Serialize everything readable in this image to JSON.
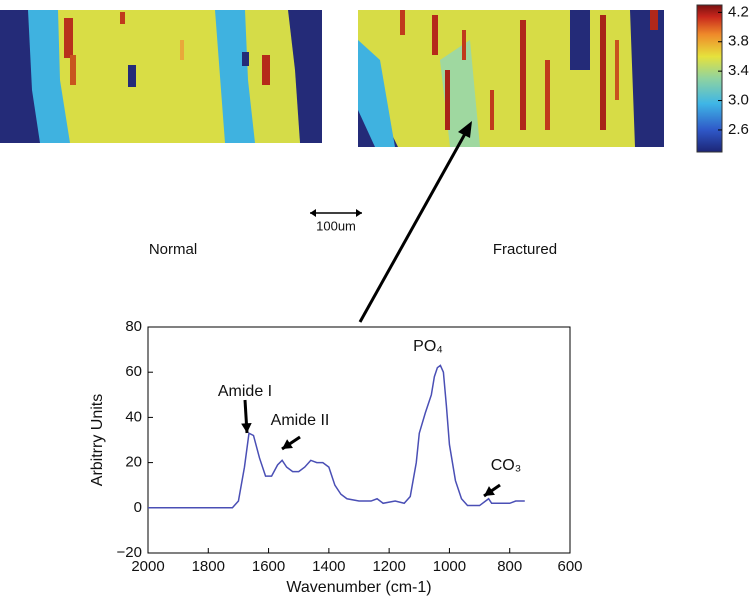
{
  "figure": {
    "panels": [
      "Normal",
      "Fractured"
    ],
    "scale_bar": "100um",
    "colorbar": {
      "lim": [
        2.3,
        4.3
      ],
      "ticks": [
        2.6,
        {
          "value": 3,
          "label": "3.0"
        },
        3.4,
        3.8,
        4.2
      ]
    }
  },
  "chart_data": {
    "type": "line",
    "xlabel": "Wavenumber (cm-1)",
    "ylabel": "Arbitrry Units",
    "x": [
      2000,
      1900,
      1720,
      1700,
      1680,
      1665,
      1650,
      1630,
      1610,
      1590,
      1570,
      1555,
      1540,
      1520,
      1500,
      1480,
      1460,
      1440,
      1420,
      1400,
      1380,
      1360,
      1340,
      1300,
      1260,
      1240,
      1220,
      1180,
      1150,
      1130,
      1110,
      1100,
      1080,
      1060,
      1050,
      1040,
      1030,
      1020,
      1010,
      1000,
      980,
      960,
      940,
      920,
      900,
      880,
      870,
      860,
      840,
      820,
      800,
      780,
      760,
      750
    ],
    "series": [
      {
        "color": "#4a4fb5",
        "values": [
          0,
          0,
          0,
          3,
          18,
          33,
          32,
          22,
          14,
          14,
          19,
          21,
          18,
          16,
          16,
          18,
          21,
          20,
          20,
          18,
          10,
          6,
          4,
          3,
          3,
          4,
          2,
          3,
          2,
          5,
          20,
          33,
          42,
          50,
          58,
          62,
          63,
          60,
          45,
          28,
          12,
          4,
          1,
          1,
          1,
          3,
          4,
          2,
          2,
          2,
          2,
          3,
          3,
          3
        ]
      }
    ],
    "xlim": [
      2000,
      600
    ],
    "ylim": [
      -20,
      80
    ],
    "xticks": [
      2000,
      1800,
      1600,
      1400,
      1200,
      1000,
      800,
      600
    ],
    "yticks": [
      {
        "value": -20,
        "label": "−20"
      },
      0,
      20,
      40,
      60,
      80
    ],
    "annotations": [
      "Amide I",
      "Amide II",
      "PO₄",
      "CO₃"
    ]
  }
}
